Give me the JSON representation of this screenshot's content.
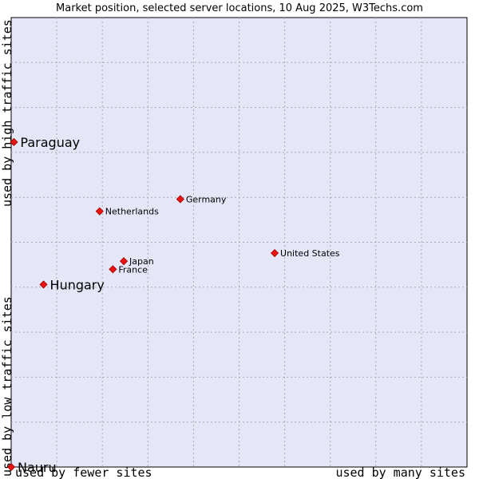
{
  "chart_data": {
    "type": "scatter",
    "title": "Market position, selected server locations, 10 Aug 2025, W3Techs.com",
    "xlabel_left": "used by fewer sites",
    "xlabel_right": "used by many sites",
    "ylabel_bottom": "used by low traffic sites",
    "ylabel_top": "used by high traffic sites",
    "xlim": [
      0,
      100
    ],
    "ylim": [
      0,
      100
    ],
    "grid": true,
    "colors": {
      "plot_bg": "#e5e7f8",
      "grid": "#aaaaaa",
      "point": "#ee1111",
      "point_edge": "#990000"
    },
    "points": [
      {
        "label": "Paraguay",
        "x": 0.6,
        "y": 72.3,
        "size": "large"
      },
      {
        "label": "Hungary",
        "x": 7.1,
        "y": 40.6,
        "size": "large"
      },
      {
        "label": "Nauru",
        "x": 0,
        "y": 0,
        "size": "large"
      },
      {
        "label": "Germany",
        "x": 37.1,
        "y": 59.6,
        "size": "small"
      },
      {
        "label": "Netherlands",
        "x": 19.4,
        "y": 56.9,
        "size": "small"
      },
      {
        "label": "United States",
        "x": 57.8,
        "y": 47.6,
        "size": "small"
      },
      {
        "label": "Japan",
        "x": 24.7,
        "y": 45.8,
        "size": "small"
      },
      {
        "label": "France",
        "x": 22.3,
        "y": 44.0,
        "size": "small"
      }
    ]
  }
}
